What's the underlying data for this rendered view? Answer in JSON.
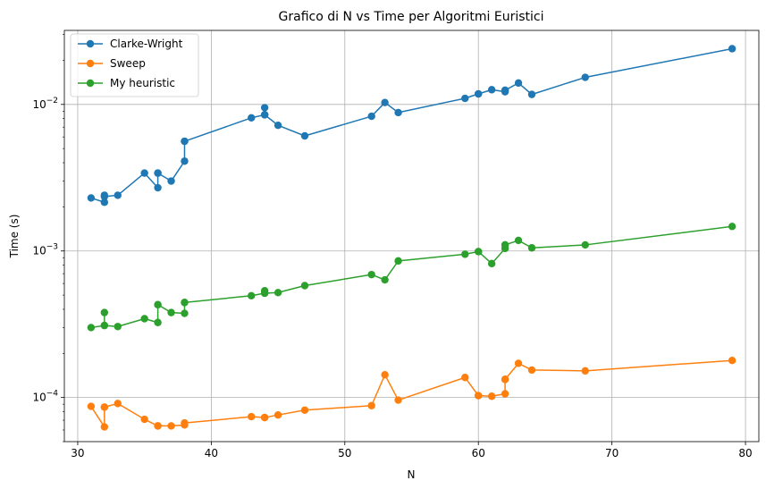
{
  "chart_data": {
    "type": "line",
    "title": "Grafico di N vs Time per Algoritmi Euristici",
    "xlabel": "N",
    "ylabel": "Time (s)",
    "xlim": [
      29,
      81
    ],
    "ylim": [
      5e-05,
      0.032
    ],
    "y_scale": "log",
    "x_ticks": [
      30,
      40,
      50,
      60,
      70,
      80
    ],
    "y_ticks": [
      {
        "value": 0.0001,
        "base": "10",
        "exp": "−4"
      },
      {
        "value": 0.001,
        "base": "10",
        "exp": "−3"
      },
      {
        "value": 0.01,
        "base": "10",
        "exp": "−2"
      }
    ],
    "grid": true,
    "legend_position": "top-left",
    "x": [
      31,
      32,
      32,
      32,
      33,
      35,
      36,
      36,
      36,
      37,
      38,
      38,
      38,
      43,
      44,
      44,
      44,
      45,
      47,
      52,
      53,
      54,
      59,
      60,
      60,
      61,
      62,
      62,
      62,
      63,
      64,
      68,
      79
    ],
    "series": [
      {
        "name": "Clarke-Wright",
        "color": "#1f77b4",
        "values": [
          0.0023,
          0.00215,
          0.0024,
          0.00235,
          0.0024,
          0.0034,
          0.0027,
          0.0034,
          0.0034,
          0.003,
          0.0041,
          0.0056,
          0.0056,
          0.0081,
          0.0085,
          0.0095,
          0.0085,
          0.0072,
          0.0061,
          0.0083,
          0.0103,
          0.0088,
          0.011,
          0.0118,
          0.0118,
          0.0126,
          0.0122,
          0.0125,
          0.0125,
          0.014,
          0.0117,
          0.0153,
          0.024
        ]
      },
      {
        "name": "Sweep",
        "color": "#ff7f0e",
        "values": [
          8.7e-05,
          6.3e-05,
          8.6e-05,
          8.6e-05,
          9.1e-05,
          7.1e-05,
          6.4e-05,
          6.4e-05,
          6.4e-05,
          6.4e-05,
          6.5e-05,
          6.7e-05,
          6.7e-05,
          7.4e-05,
          7.3e-05,
          7.3e-05,
          7.3e-05,
          7.6e-05,
          8.2e-05,
          8.8e-05,
          0.000143,
          9.6e-05,
          0.000137,
          0.000103,
          0.000103,
          0.000102,
          0.000106,
          0.000133,
          0.000133,
          0.000171,
          0.000154,
          0.000152,
          0.000179
        ]
      },
      {
        "name": "My heuristic",
        "color": "#2ca02c",
        "values": [
          0.0003,
          0.00031,
          0.00038,
          0.00031,
          0.000305,
          0.000345,
          0.000325,
          0.00043,
          0.00043,
          0.00038,
          0.000375,
          0.000445,
          0.000445,
          0.000495,
          0.000515,
          0.000535,
          0.000515,
          0.00052,
          0.00058,
          0.00069,
          0.000635,
          0.000855,
          0.00095,
          0.00099,
          0.00099,
          0.00082,
          0.00104,
          0.0011,
          0.0011,
          0.00118,
          0.00105,
          0.0011,
          0.00147
        ]
      }
    ]
  }
}
